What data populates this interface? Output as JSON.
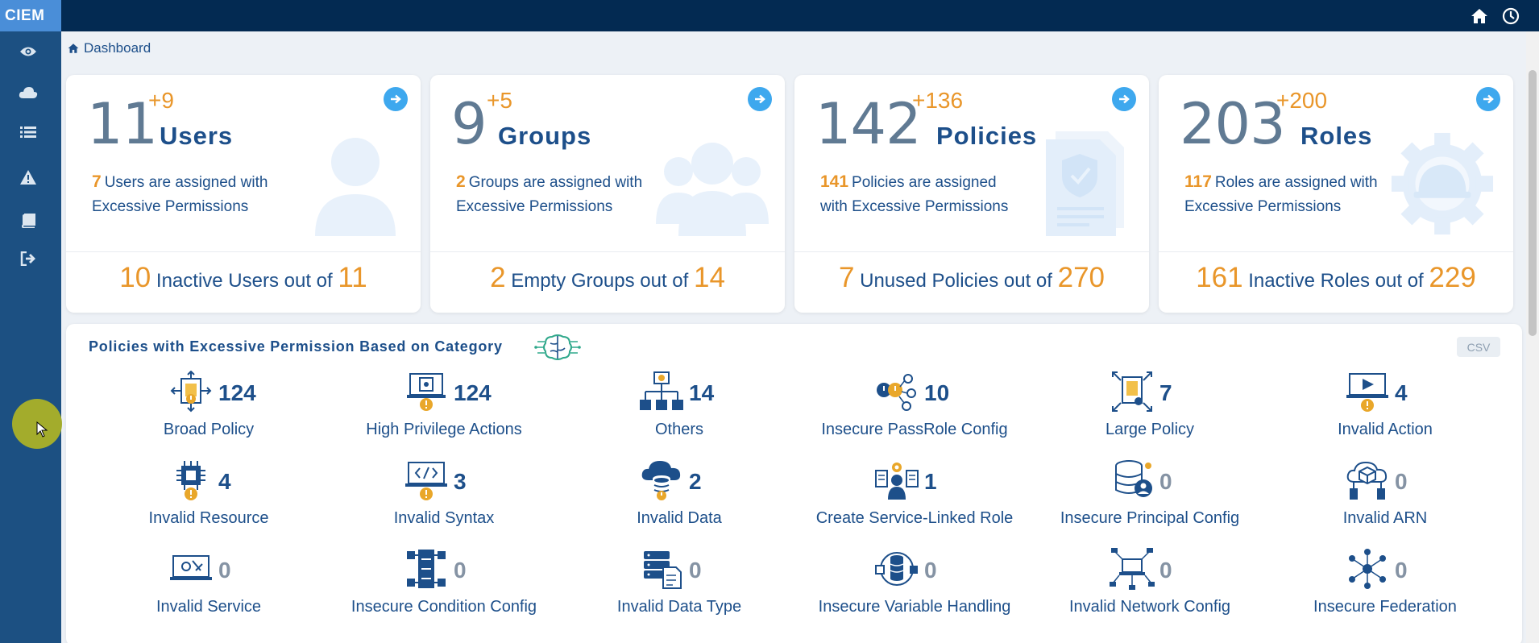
{
  "app": {
    "logo": "CIEM"
  },
  "breadcrumb": {
    "label": "Dashboard"
  },
  "cards": [
    {
      "count": "11",
      "delta": "+9",
      "title": "Users",
      "excess_count": "7",
      "excess_text": "Users are assigned with Excessive Permissions",
      "footer_num": "10",
      "footer_text": "Inactive Users out of",
      "footer_total": "11"
    },
    {
      "count": "9",
      "delta": "+5",
      "title": "Groups",
      "excess_count": "2",
      "excess_text": "Groups are assigned with Excessive Permissions",
      "footer_num": "2",
      "footer_text": "Empty Groups out of",
      "footer_total": "14"
    },
    {
      "count": "142",
      "delta": "+136",
      "title": "Policies",
      "excess_count": "141",
      "excess_text": "Policies are assigned with Excessive Permissions",
      "footer_num": "7",
      "footer_text": "Unused Policies out of",
      "footer_total": "270"
    },
    {
      "count": "203",
      "delta": "+200",
      "title": "Roles",
      "excess_count": "117",
      "excess_text": "Roles are assigned with Excessive Permissions",
      "footer_num": "161",
      "footer_text": "Inactive Roles out of",
      "footer_total": "229"
    }
  ],
  "panel": {
    "title": "Policies with Excessive Permission Based on Category",
    "csv_label": "CSV",
    "categories": [
      {
        "label": "Broad Policy",
        "count": "124",
        "icon": "broad-policy-icon"
      },
      {
        "label": "High Privilege Actions",
        "count": "124",
        "icon": "high-privilege-icon"
      },
      {
        "label": "Others",
        "count": "14",
        "icon": "hierarchy-icon"
      },
      {
        "label": "Insecure PassRole Config",
        "count": "10",
        "icon": "passrole-icon"
      },
      {
        "label": "Large Policy",
        "count": "7",
        "icon": "large-policy-icon"
      },
      {
        "label": "Invalid Action",
        "count": "4",
        "icon": "invalid-action-icon"
      },
      {
        "label": "Invalid Resource",
        "count": "4",
        "icon": "chip-icon"
      },
      {
        "label": "Invalid Syntax",
        "count": "3",
        "icon": "code-icon"
      },
      {
        "label": "Invalid Data",
        "count": "2",
        "icon": "cloud-database-icon"
      },
      {
        "label": "Create Service-Linked Role",
        "count": "1",
        "icon": "gear-user-icon"
      },
      {
        "label": "Insecure Principal Config",
        "count": "0",
        "icon": "database-user-icon"
      },
      {
        "label": "Invalid ARN",
        "count": "0",
        "icon": "cloud-cube-icon"
      },
      {
        "label": "Invalid Service",
        "count": "0",
        "icon": "laptop-tools-icon"
      },
      {
        "label": "Insecure Condition Config",
        "count": "0",
        "icon": "puzzle-icon"
      },
      {
        "label": "Invalid Data Type",
        "count": "0",
        "icon": "server-doc-icon"
      },
      {
        "label": "Insecure Variable Handling",
        "count": "0",
        "icon": "db-network-icon"
      },
      {
        "label": "Invalid Network Config",
        "count": "0",
        "icon": "network-laptop-icon"
      },
      {
        "label": "Insecure Federation",
        "count": "0",
        "icon": "federation-icon"
      }
    ]
  },
  "colors": {
    "sidebar": "#1c5082",
    "topbar": "#032a52",
    "accent": "#e9962a",
    "primary": "#1d4f8a",
    "arrow": "#3ea8ee"
  }
}
